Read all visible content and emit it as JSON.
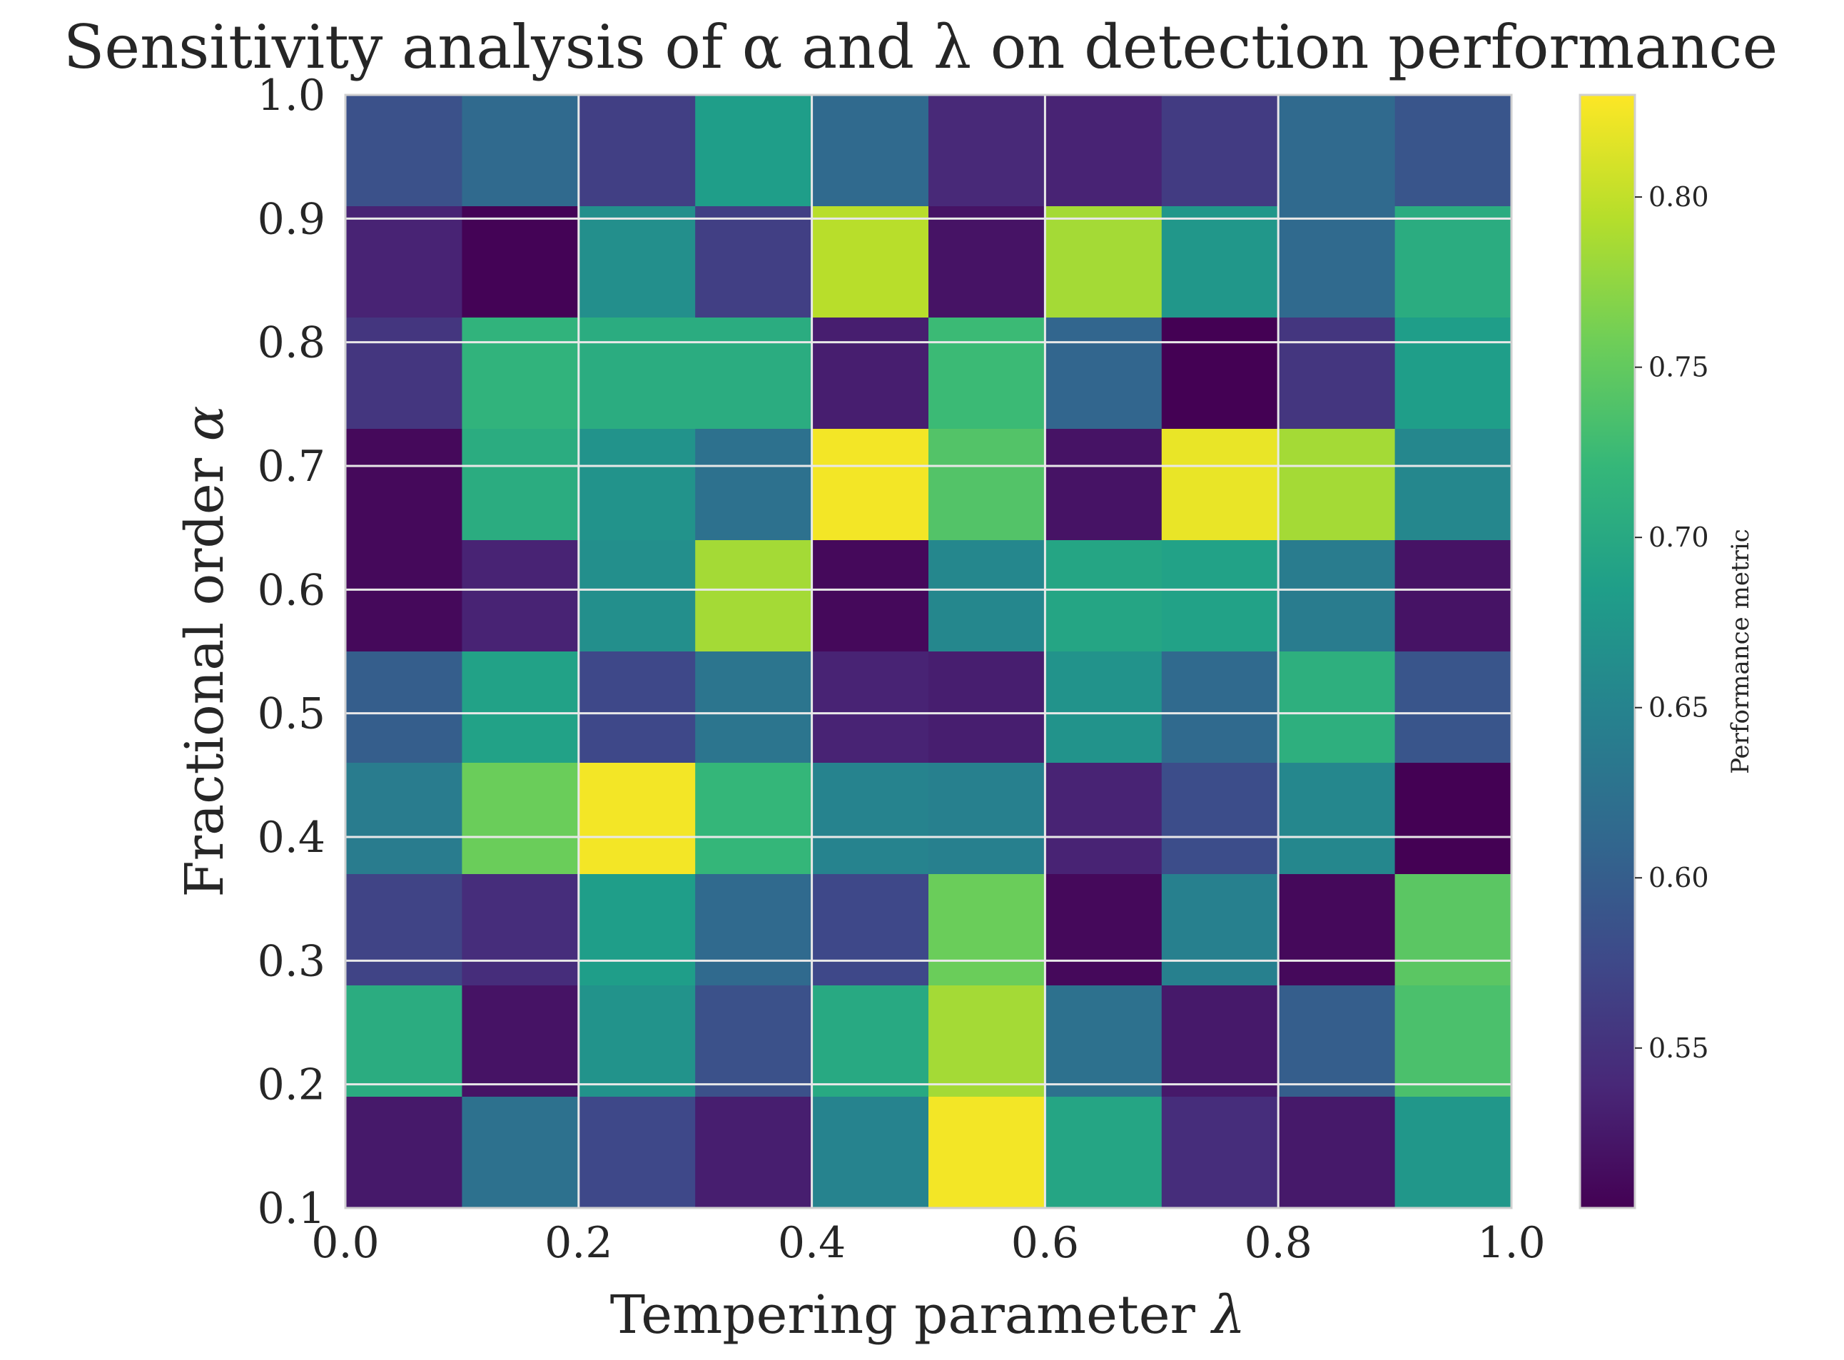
{
  "chart_data": {
    "type": "heatmap",
    "title": "Sensitivity analysis of α and λ on detection performance",
    "xlabel_text": "Tempering parameter ",
    "xlabel_symbol": "λ",
    "ylabel_text": "Fractional order ",
    "ylabel_symbol": "α",
    "x_ticks": [
      "0.0",
      "0.2",
      "0.4",
      "0.6",
      "0.8",
      "1.0"
    ],
    "y_ticks": [
      "0.1",
      "0.2",
      "0.3",
      "0.4",
      "0.5",
      "0.6",
      "0.7",
      "0.8",
      "0.9",
      "1.0"
    ],
    "xlim": [
      0.0,
      1.0
    ],
    "ylim": [
      0.1,
      1.0
    ],
    "grid": true,
    "colormap": "viridis",
    "colorbar": {
      "label": "Performance metric",
      "ticks": [
        "0.55",
        "0.60",
        "0.65",
        "0.70",
        "0.75",
        "0.80"
      ],
      "vmin": 0.503,
      "vmax": 0.83
    },
    "rows_top_to_bottom": [
      [
        0.585,
        0.615,
        0.565,
        0.685,
        0.615,
        0.54,
        0.535,
        0.56,
        0.615,
        0.59
      ],
      [
        0.535,
        0.505,
        0.665,
        0.565,
        0.795,
        0.52,
        0.785,
        0.675,
        0.615,
        0.705
      ],
      [
        0.555,
        0.715,
        0.705,
        0.705,
        0.53,
        0.725,
        0.61,
        0.503,
        0.555,
        0.685
      ],
      [
        0.51,
        0.705,
        0.67,
        0.625,
        0.825,
        0.74,
        0.52,
        0.82,
        0.785,
        0.655
      ],
      [
        0.51,
        0.535,
        0.665,
        0.785,
        0.51,
        0.655,
        0.695,
        0.69,
        0.64,
        0.52
      ],
      [
        0.6,
        0.69,
        0.575,
        0.63,
        0.535,
        0.53,
        0.67,
        0.615,
        0.71,
        0.59
      ],
      [
        0.64,
        0.755,
        0.825,
        0.72,
        0.65,
        0.645,
        0.535,
        0.58,
        0.655,
        0.503
      ],
      [
        0.57,
        0.545,
        0.685,
        0.615,
        0.575,
        0.755,
        0.51,
        0.645,
        0.51,
        0.745
      ],
      [
        0.705,
        0.52,
        0.67,
        0.585,
        0.7,
        0.785,
        0.625,
        0.525,
        0.6,
        0.735
      ],
      [
        0.525,
        0.625,
        0.575,
        0.53,
        0.65,
        0.825,
        0.695,
        0.545,
        0.525,
        0.675
      ]
    ]
  }
}
